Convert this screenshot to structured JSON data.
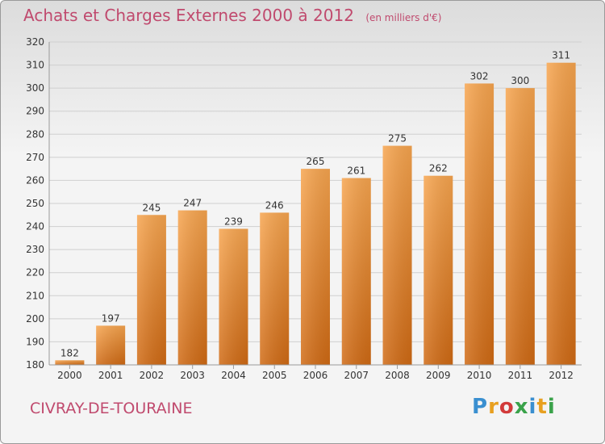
{
  "header": {
    "title": "Achats et Charges Externes 2000 à 2012",
    "unit": "(en milliers d'€)"
  },
  "footer": {
    "commune": "CIVRAY-DE-TOURAINE",
    "logo": "Proxiti"
  },
  "colors": {
    "title": "#c04a6e",
    "bar_top": "#f7a54f",
    "bar_bottom": "#d06a14"
  },
  "chart_data": {
    "type": "bar",
    "title": "Achats et Charges Externes 2000 à 2012",
    "subtitle": "(en milliers d'€)",
    "xlabel": "",
    "ylabel": "",
    "categories": [
      "2000",
      "2001",
      "2002",
      "2003",
      "2004",
      "2005",
      "2006",
      "2007",
      "2008",
      "2009",
      "2010",
      "2011",
      "2012"
    ],
    "values": [
      182,
      197,
      245,
      247,
      239,
      246,
      265,
      261,
      275,
      262,
      302,
      300,
      311
    ],
    "ylim": [
      180,
      320
    ],
    "yticks": [
      180,
      190,
      200,
      210,
      220,
      230,
      240,
      250,
      260,
      270,
      280,
      290,
      300,
      310,
      320
    ],
    "grid": "horizontal",
    "legend": "none"
  }
}
